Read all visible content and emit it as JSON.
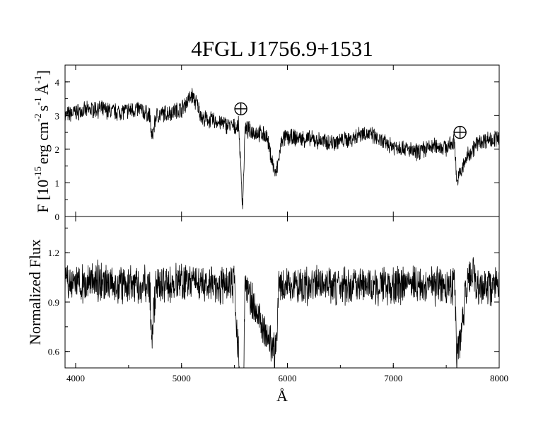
{
  "chart_data": [
    {
      "type": "line",
      "title": "4FGL J1756.9+1531",
      "xlabel": "Å",
      "ylabel": "F [10^-15 erg cm^-2 s^-1 Å^-1]",
      "ylabel_parts": {
        "base": "F [10",
        "exp1": "-15",
        "unit_erg": "erg cm",
        "exp2": "-2",
        "unit_s": "s",
        "exp3": "-1",
        "unit_a": "Å",
        "exp4": "-1",
        "close": "]"
      },
      "xlim": [
        3900,
        8000
      ],
      "ylim": [
        0,
        4.5
      ],
      "xticks": [
        4000,
        5000,
        6000,
        7000,
        8000
      ],
      "xtick_labels": [
        "4000",
        "5000",
        "6000",
        "7000",
        "8000"
      ],
      "yticks": [
        0,
        1,
        2,
        3,
        4
      ],
      "ytick_labels": [
        "0",
        "1",
        "2",
        "3",
        "4"
      ],
      "x": [
        3900,
        4000,
        4200,
        4400,
        4600,
        4700,
        4720,
        4760,
        4900,
        5000,
        5050,
        5100,
        5150,
        5200,
        5300,
        5400,
        5500,
        5540,
        5577,
        5600,
        5700,
        5800,
        5890,
        5950,
        6000,
        6200,
        6400,
        6600,
        6700,
        6800,
        6900,
        7000,
        7100,
        7200,
        7300,
        7400,
        7500,
        7580,
        7600,
        7620,
        7650,
        7700,
        7800,
        7900,
        8000
      ],
      "values": [
        3.0,
        3.1,
        3.2,
        3.1,
        3.2,
        3.0,
        2.3,
        3.0,
        3.1,
        3.2,
        3.4,
        3.6,
        3.3,
        2.9,
        2.85,
        2.75,
        2.65,
        2.7,
        0.3,
        2.6,
        2.5,
        2.4,
        1.2,
        2.3,
        2.35,
        2.3,
        2.2,
        2.3,
        2.5,
        2.4,
        2.2,
        2.1,
        2.05,
        1.9,
        2.0,
        2.1,
        2.05,
        2.2,
        1.0,
        1.2,
        1.4,
        1.8,
        2.2,
        2.3,
        2.3
      ],
      "noise": 0.22,
      "markers": [
        {
          "label": "telluric",
          "x": 5560,
          "y": 3.2
        },
        {
          "label": "telluric",
          "x": 7630,
          "y": 2.5
        }
      ]
    },
    {
      "type": "line",
      "title": "",
      "xlabel": "Å",
      "ylabel": "Normalized Flux",
      "xlim": [
        3900,
        8000
      ],
      "ylim": [
        0.5,
        1.42
      ],
      "xticks": [
        4000,
        5000,
        6000,
        7000,
        8000
      ],
      "xtick_labels": [
        "4000",
        "5000",
        "6000",
        "7000",
        "8000"
      ],
      "yticks": [
        0.6,
        0.9,
        1.2
      ],
      "ytick_labels": [
        "0.6",
        "0.9",
        "1.2"
      ],
      "x": [
        3900,
        4200,
        4500,
        4700,
        4720,
        4760,
        5000,
        5300,
        5500,
        5577,
        5600,
        5890,
        5920,
        6200,
        6500,
        6800,
        7000,
        7200,
        7400,
        7500,
        7580,
        7600,
        7650,
        7700,
        7750,
        7800,
        7900,
        8000
      ],
      "values": [
        1.0,
        1.03,
        1.0,
        1.0,
        0.66,
        1.0,
        1.02,
        1.0,
        1.0,
        0.1,
        1.0,
        0.58,
        1.0,
        1.0,
        1.0,
        1.0,
        1.0,
        1.0,
        1.0,
        1.0,
        1.0,
        0.55,
        0.75,
        1.05,
        1.1,
        1.0,
        1.0,
        1.0
      ],
      "noise": 0.1
    }
  ]
}
